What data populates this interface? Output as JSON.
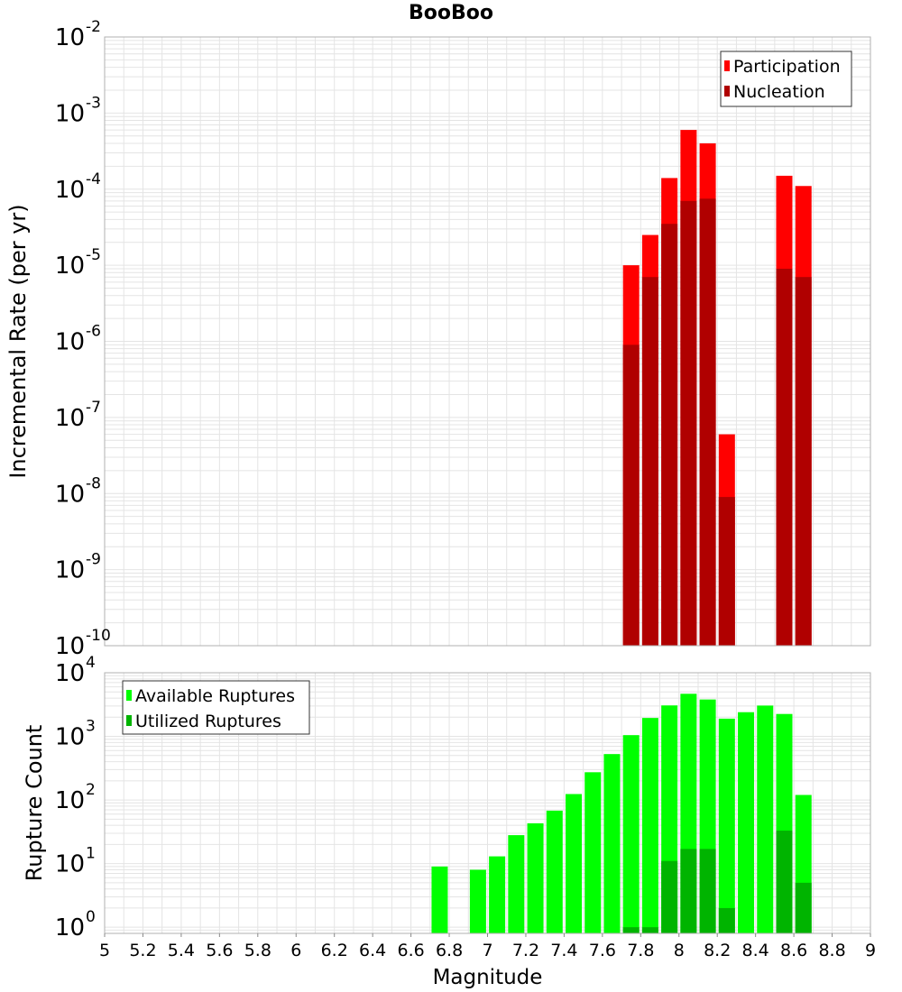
{
  "title": "BooBoo",
  "xlabel": "Magnitude",
  "x_ticks": [
    "5",
    "5.2",
    "5.4",
    "5.6",
    "5.8",
    "6",
    "6.2",
    "6.4",
    "6.6",
    "6.8",
    "7",
    "7.2",
    "7.4",
    "7.6",
    "7.8",
    "8",
    "8.2",
    "8.4",
    "8.6",
    "8.8",
    "9"
  ],
  "colors": {
    "participation": "#ff0000",
    "nucleation": "#b00000",
    "available": "#00ff00",
    "utilized": "#00b400",
    "grid": "#e4e4e4",
    "axis": "#b0b0b0"
  },
  "chart_data": [
    {
      "type": "bar",
      "title": "BooBoo",
      "ylabel": "Incremental Rate (per yr)",
      "yscale": "log",
      "ylim": [
        1e-10,
        0.01
      ],
      "xlim": [
        5,
        9
      ],
      "y_tick_exponents": [
        "-10",
        "-9",
        "-8",
        "-7",
        "-6",
        "-5",
        "-4",
        "-3",
        "-2"
      ],
      "grid": true,
      "legend_position": "top-right",
      "x": [
        7.75,
        7.85,
        7.95,
        8.05,
        8.15,
        8.25,
        8.55,
        8.65
      ],
      "series": [
        {
          "name": "Participation",
          "values": [
            1e-05,
            2.5e-05,
            0.00014,
            0.0006,
            0.0004,
            6e-08,
            0.00015,
            0.00011
          ]
        },
        {
          "name": "Nucleation",
          "values": [
            9e-07,
            7e-06,
            3.5e-05,
            7e-05,
            7.5e-05,
            9e-09,
            9e-06,
            7e-06
          ]
        }
      ]
    },
    {
      "type": "bar",
      "ylabel": "Rupture Count",
      "yscale": "log",
      "ylim": [
        0.8,
        10000
      ],
      "xlim": [
        5,
        9
      ],
      "y_tick_exponents": [
        "0",
        "1",
        "2",
        "3",
        "4"
      ],
      "grid": true,
      "legend_position": "top-left",
      "x": [
        6.75,
        6.95,
        7.05,
        7.15,
        7.25,
        7.35,
        7.45,
        7.55,
        7.65,
        7.75,
        7.85,
        7.95,
        8.05,
        8.15,
        8.25,
        8.35,
        8.45,
        8.55,
        8.65
      ],
      "series": [
        {
          "name": "Available Ruptures",
          "values": [
            9,
            8,
            13,
            28,
            43,
            68,
            124,
            273,
            527,
            1046,
            1947,
            3066,
            4672,
            3800,
            1900,
            2400,
            3050,
            2250,
            120
          ]
        },
        {
          "name": "Utilized Ruptures",
          "values": [
            0,
            0,
            0,
            0,
            0,
            0,
            0,
            0,
            0,
            1,
            1,
            11,
            17,
            17,
            2,
            0,
            0,
            33,
            5
          ]
        }
      ]
    }
  ]
}
